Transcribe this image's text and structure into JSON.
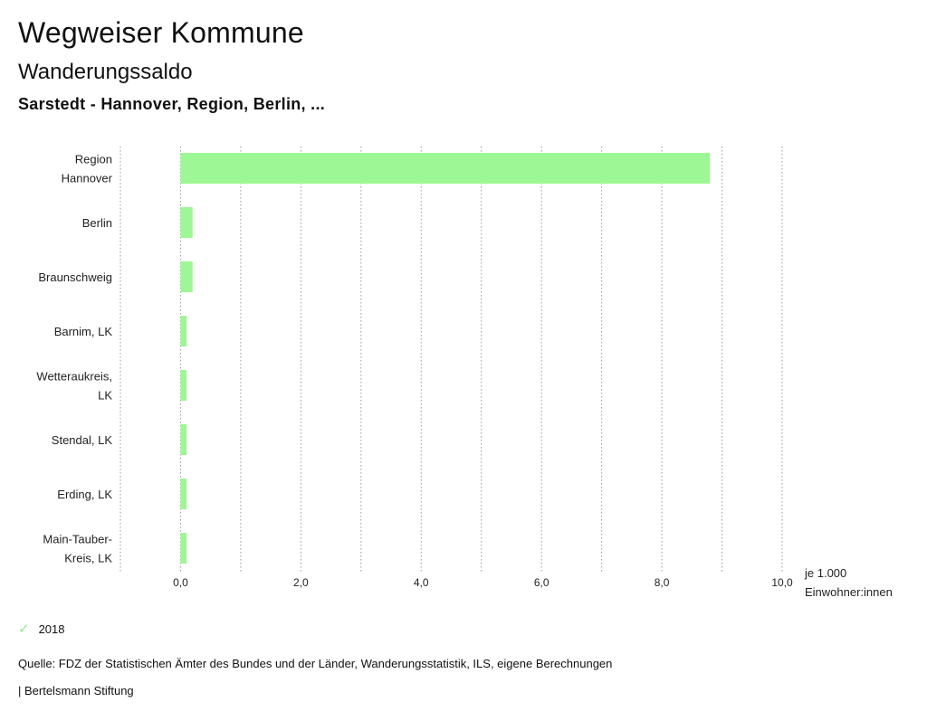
{
  "header": {
    "title": "Wegweiser Kommune",
    "subtitle": "Wanderungssaldo",
    "context": "Sarstedt - Hannover, Region, Berlin, ..."
  },
  "chart_data": {
    "type": "bar",
    "orientation": "horizontal",
    "categories": [
      [
        "Region",
        "Hannover"
      ],
      [
        "Berlin"
      ],
      [
        "Braunschweig"
      ],
      [
        "Barnim, LK"
      ],
      [
        "Wetteraukreis,",
        "LK"
      ],
      [
        "Stendal, LK"
      ],
      [
        "Erding, LK"
      ],
      [
        "Main-Tauber-",
        "Kreis, LK"
      ]
    ],
    "series": [
      {
        "name": "2018",
        "values": [
          8.8,
          0.2,
          0.2,
          0.1,
          0.1,
          0.1,
          0.1,
          0.1
        ],
        "color": "#9df794"
      }
    ],
    "xlim": [
      -1.0,
      10.0
    ],
    "xticks": [
      0,
      2,
      4,
      6,
      8,
      10
    ],
    "xtick_labels": [
      "0,0",
      "2,0",
      "4,0",
      "6,0",
      "8,0",
      "10,0"
    ],
    "xlabel": [
      "je 1.000",
      "Einwohner:innen"
    ],
    "grid": "vertical dotted",
    "legend_position": "bottom-left"
  },
  "legend": {
    "label": "2018",
    "check_color": "#8ee88e"
  },
  "footer": {
    "source": "Quelle: FDZ der Statistischen Ämter des Bundes und der Länder, Wanderungsstatistik, ILS, eigene Berechnungen",
    "brand": "| Bertelsmann Stiftung"
  }
}
